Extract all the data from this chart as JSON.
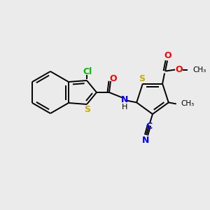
{
  "bg_color": "#ebebeb",
  "atom_colors": {
    "Cl": "#00bb00",
    "S": "#ccaa00",
    "O": "#ff0000",
    "N": "#0000ff",
    "C": "#000000",
    "H": "#000000"
  },
  "figsize": [
    3.0,
    3.0
  ],
  "dpi": 100
}
